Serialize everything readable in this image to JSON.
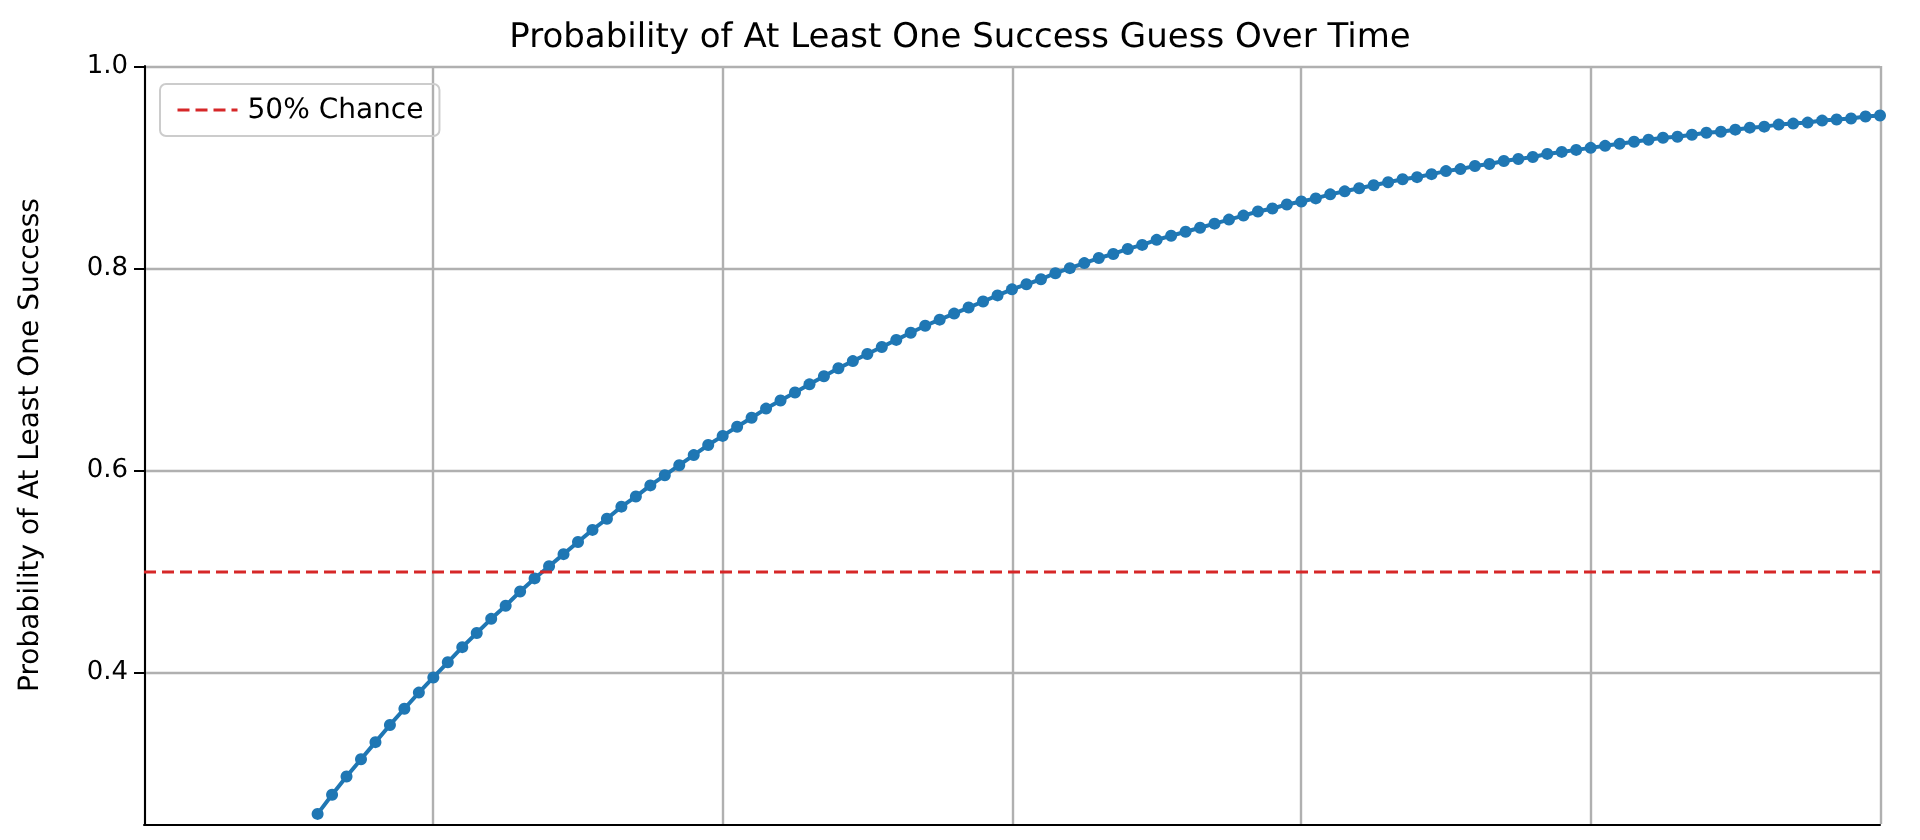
{
  "chart_data": {
    "type": "line",
    "title": "Probability of At Least One Success Guess Over Time",
    "ylabel": "Probability of At Least One Success",
    "categories": [
      null,
      null,
      null,
      null,
      null,
      null,
      null,
      null,
      null,
      null,
      null,
      null,
      null,
      null,
      null,
      null,
      null,
      null,
      null,
      null,
      null,
      null,
      null,
      null,
      null,
      null,
      null,
      null,
      null,
      null,
      null,
      null,
      null,
      null,
      null,
      null,
      null,
      null,
      null,
      null,
      null,
      null,
      null,
      null,
      null,
      null,
      null,
      null,
      null,
      null,
      null,
      null,
      null,
      null,
      null,
      null,
      null,
      null,
      null,
      null,
      null,
      null,
      null,
      null,
      null,
      null,
      null,
      null,
      null,
      null,
      null,
      null,
      null,
      null,
      null,
      null,
      null,
      null,
      null,
      null,
      null,
      null,
      null,
      null,
      null,
      null,
      null,
      null,
      null,
      null,
      null,
      null,
      null,
      null,
      null,
      null,
      null,
      null,
      null,
      null,
      null,
      null,
      null,
      null,
      null,
      null,
      null,
      null,
      null,
      null,
      null,
      null,
      null,
      null,
      null,
      null,
      null,
      null,
      null,
      null,
      null
    ],
    "series": [
      {
        "color": "#1f77b4",
        "values": [
          null,
          null,
          null,
          null,
          null,
          null,
          null,
          null,
          null,
          null,
          null,
          null,
          0.26,
          0.279,
          0.297,
          0.314,
          0.331,
          0.348,
          0.364,
          0.38,
          0.395,
          0.41,
          0.425,
          0.439,
          0.453,
          0.466,
          0.48,
          0.493,
          0.505,
          0.517,
          0.529,
          0.541,
          0.552,
          0.564,
          0.574,
          0.585,
          0.595,
          0.605,
          0.615,
          0.625,
          0.634,
          0.643,
          0.652,
          0.661,
          0.669,
          0.677,
          0.685,
          0.693,
          0.701,
          0.708,
          0.715,
          0.722,
          0.729,
          0.736,
          0.743,
          0.749,
          0.755,
          0.761,
          0.767,
          0.773,
          0.779,
          0.784,
          0.789,
          0.795,
          0.8,
          0.805,
          0.81,
          0.814,
          0.819,
          0.823,
          0.828,
          0.832,
          0.836,
          0.84,
          0.844,
          0.848,
          0.852,
          0.856,
          0.859,
          0.863,
          0.866,
          0.869,
          0.873,
          0.876,
          0.879,
          0.882,
          0.885,
          0.888,
          0.89,
          0.893,
          0.896,
          0.898,
          0.901,
          0.903,
          0.906,
          0.908,
          0.91,
          0.913,
          0.915,
          0.917,
          0.919,
          0.921,
          0.923,
          0.925,
          0.927,
          0.929,
          0.93,
          0.932,
          0.934,
          0.935,
          0.937,
          0.939,
          0.94,
          0.942,
          0.943,
          0.944,
          0.946,
          0.947,
          0.948,
          0.95,
          0.951
        ]
      }
    ],
    "ylim": [
      0.25,
      1.0
    ],
    "yticks": [
      0.4,
      0.6,
      0.8,
      {
        "value": 1.0,
        "label": "1.0"
      }
    ],
    "grid": true,
    "marker": "circle",
    "line_style": "solid",
    "legend": "top left",
    "ref_lines": [
      {
        "axis": "y",
        "value": 0.5,
        "label": "50% Chance",
        "color": "#d62728",
        "line_style": "dashed"
      }
    ]
  }
}
